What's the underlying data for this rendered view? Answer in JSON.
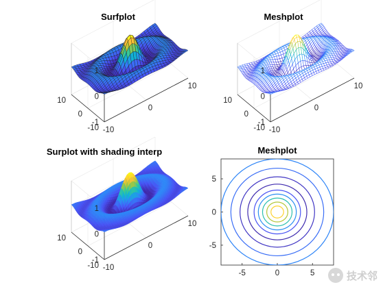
{
  "chart_data": [
    {
      "type": "surface",
      "title": "Surfplot",
      "function": "sinc(sqrt(x^2+y^2)), peak 1 at origin",
      "style": "faceted",
      "colormap": "parula",
      "xlim": [
        -10,
        10
      ],
      "ylim": [
        -10,
        10
      ],
      "zlim": [
        -1,
        1
      ],
      "xticks": [
        "-10",
        "0",
        "10"
      ],
      "yticks": [
        "-10",
        "0",
        "10"
      ],
      "zticks": [
        "-1",
        "0",
        "1"
      ],
      "grid": true
    },
    {
      "type": "mesh",
      "title": "Meshplot",
      "function": "sinc(sqrt(x^2+y^2)), peak 1 at origin",
      "style": "wireframe",
      "colormap": "parula",
      "xlim": [
        -10,
        10
      ],
      "ylim": [
        -10,
        10
      ],
      "zlim": [
        -1,
        1
      ],
      "xticks": [
        "-10",
        "0",
        "10"
      ],
      "yticks": [
        "-10",
        "0",
        "10"
      ],
      "zticks": [
        "-1",
        "0",
        "1"
      ],
      "grid": true
    },
    {
      "type": "surface",
      "title": "Surplot with shading interp",
      "function": "sinc(sqrt(x^2+y^2)), peak 1 at origin",
      "style": "interp",
      "colormap": "parula",
      "xlim": [
        -10,
        10
      ],
      "ylim": [
        -10,
        10
      ],
      "zlim": [
        -1,
        1
      ],
      "xticks": [
        "-10",
        "0",
        "10"
      ],
      "yticks": [
        "-10",
        "0",
        "10"
      ],
      "zticks": [
        "-1",
        "0",
        "1"
      ],
      "grid": true
    },
    {
      "type": "contour",
      "title": "Meshplot",
      "function": "sinc(sqrt(x^2+y^2))",
      "colormap": "parula",
      "xlim": [
        -8,
        8
      ],
      "ylim": [
        -8,
        8
      ],
      "xticks": [
        "-5",
        "0",
        "5"
      ],
      "yticks": [
        "-5",
        "0",
        "5"
      ],
      "contour_radii": [
        0.9,
        1.5,
        2.1,
        2.7,
        3.3,
        4.2,
        5.3,
        6.6,
        8.0
      ],
      "grid": false
    }
  ],
  "watermark": {
    "text": "技术邻"
  },
  "colors": {
    "axis": "#262626",
    "grid": "#e6e6e6",
    "edge": "#1a1a1a"
  }
}
